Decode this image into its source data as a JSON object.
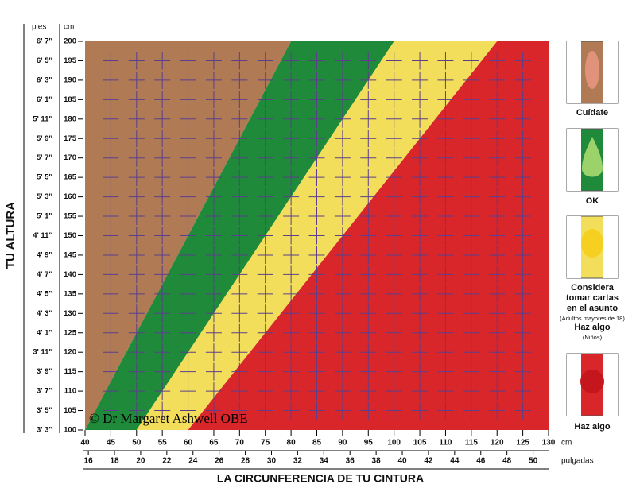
{
  "chart_data": {
    "type": "ratio-zones",
    "y_axis_title": "TU ALTURA",
    "x_axis_title": "LA CIRCUNFERENCIA DE TU CINTURA",
    "y_unit": "cm",
    "y2_unit": "pies",
    "x_unit": "cm",
    "x2_unit": "pulgadas",
    "copyright": "© Dr Margaret Ashwell OBE",
    "xlim": [
      40,
      130
    ],
    "xticks": [
      40,
      45,
      50,
      55,
      60,
      65,
      70,
      75,
      80,
      85,
      90,
      95,
      100,
      105,
      110,
      115,
      120,
      125,
      130
    ],
    "x2lim": [
      15.75,
      51.18
    ],
    "x2ticks": [
      16,
      18,
      20,
      22,
      24,
      26,
      28,
      30,
      32,
      34,
      36,
      38,
      40,
      42,
      44,
      46,
      48,
      50
    ],
    "ylim": [
      100,
      200
    ],
    "yticks": [
      100,
      105,
      110,
      115,
      120,
      125,
      130,
      135,
      140,
      145,
      150,
      155,
      160,
      165,
      170,
      175,
      180,
      185,
      190,
      195,
      200
    ],
    "feet_labels": [
      "3' 3″",
      "3' 5″",
      "3' 7″",
      "3' 9″",
      "3' 11″",
      "4' 1″",
      "4' 3″",
      "4' 5″",
      "4' 7″",
      "4' 9″",
      "4' 11″",
      "5' 1″",
      "5' 3″",
      "5' 5″",
      "5' 7″",
      "5' 9″",
      "5' 11″",
      "6' 1″",
      "6' 3″",
      "6' 5″",
      "6' 7″"
    ],
    "grid": true,
    "grid_color": "#5b3f8c",
    "zones": [
      {
        "label_lines": [
          "Cuídate"
        ],
        "color": "#b07a55",
        "ratio_min": null,
        "ratio_max": 0.4
      },
      {
        "label_lines": [
          "OK"
        ],
        "color": "#1e8a3a",
        "ratio_min": 0.4,
        "ratio_max": 0.5
      },
      {
        "label_lines": [
          "Considera",
          "tomar cartas",
          "en el asunto",
          "(Adultos mayores de 18)",
          "Haz algo",
          "(Niños)"
        ],
        "color": "#f2de5a",
        "ratio_min": 0.5,
        "ratio_max": 0.6
      },
      {
        "label_lines": [
          "Haz algo"
        ],
        "color": "#d9262a",
        "ratio_min": 0.6,
        "ratio_max": null
      }
    ]
  }
}
